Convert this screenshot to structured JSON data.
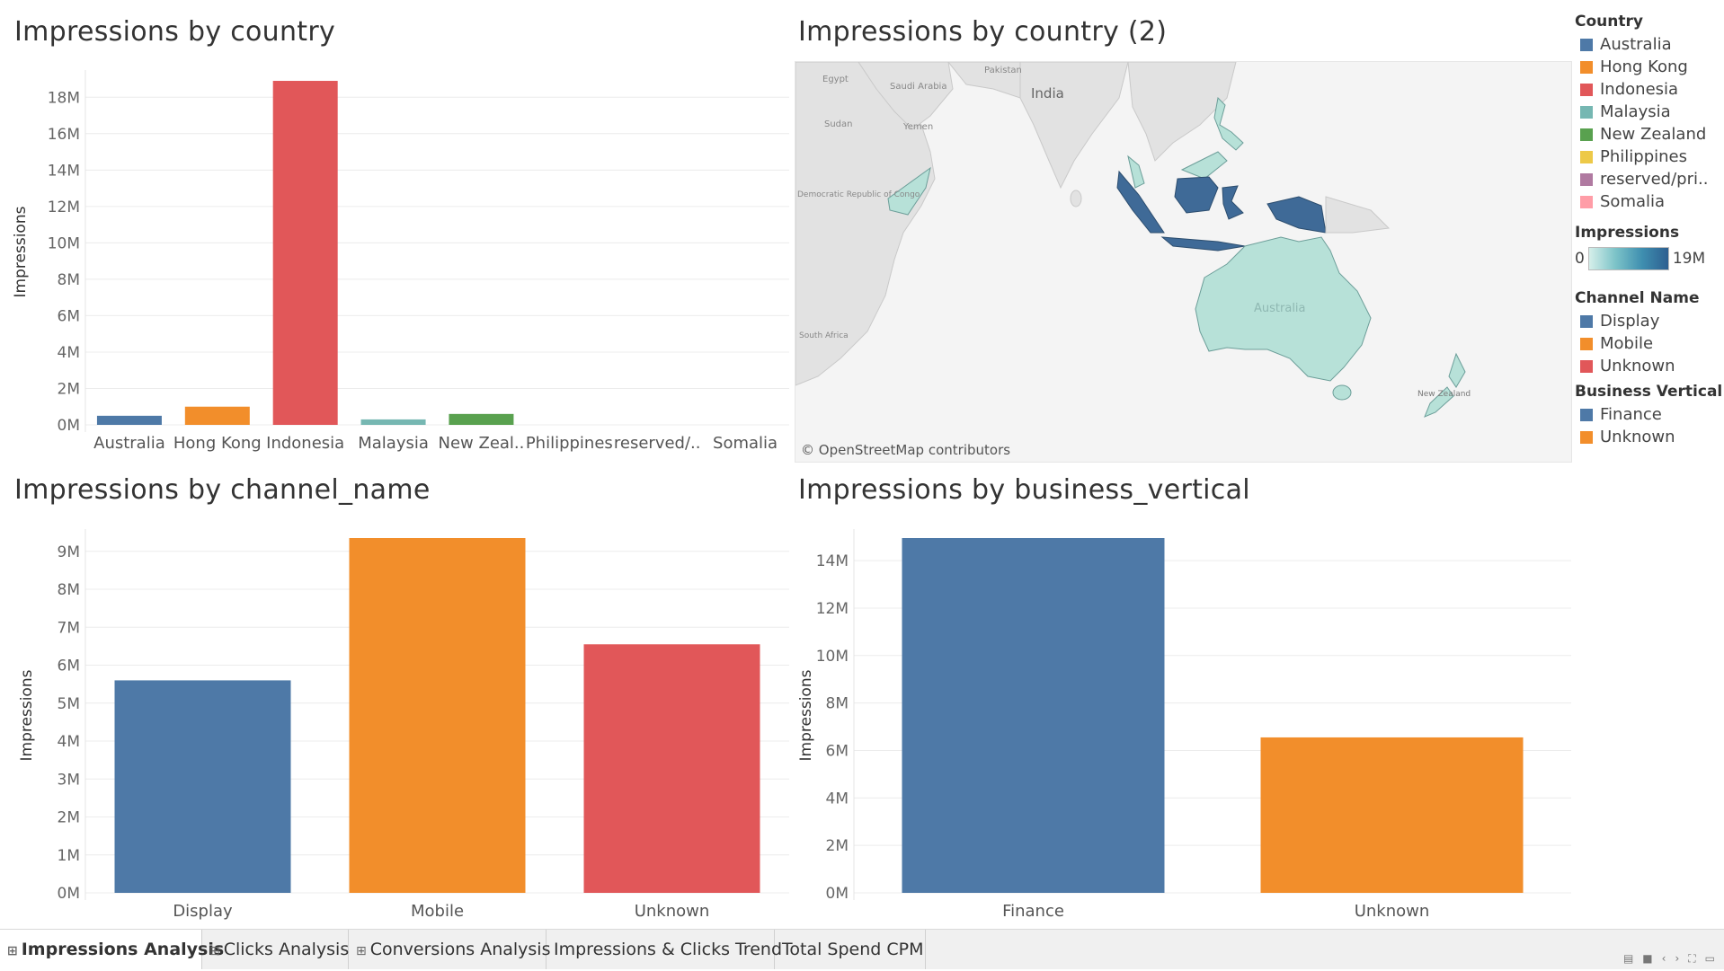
{
  "colors": {
    "blue": "#4e79a7",
    "orange": "#f28e2b",
    "red": "#e15759",
    "teal": "#76b7b2",
    "green": "#59a14f",
    "yellow": "#edc948",
    "purple": "#b07aa1",
    "pink": "#ff9da7",
    "map_low": "#b7e1d8",
    "map_high": "#3f6a97",
    "map_land": "#e2e2e2",
    "map_water": "#f4f4f4"
  },
  "titles": {
    "country_chart": "Impressions by country",
    "map": "Impressions by country (2)",
    "channel_chart": "Impressions by channel_name",
    "vertical_chart": "Impressions by business_vertical"
  },
  "map": {
    "labels": [
      "Egypt",
      "Saudi Arabia",
      "Pakistan",
      "India",
      "Sudan",
      "Yemen",
      "Democratic Republic of Congo",
      "South Africa",
      "Australia",
      "New Zealand"
    ],
    "attribution": "© OpenStreetMap contributors"
  },
  "legend": {
    "country": {
      "title": "Country",
      "items": [
        {
          "label": "Australia",
          "color": "#4e79a7"
        },
        {
          "label": "Hong Kong",
          "color": "#f28e2b"
        },
        {
          "label": "Indonesia",
          "color": "#e15759"
        },
        {
          "label": "Malaysia",
          "color": "#76b7b2"
        },
        {
          "label": "New Zealand",
          "color": "#59a14f"
        },
        {
          "label": "Philippines",
          "color": "#edc948"
        },
        {
          "label": "reserved/pri..",
          "color": "#b07aa1"
        },
        {
          "label": "Somalia",
          "color": "#ff9da7"
        }
      ]
    },
    "impressions": {
      "title": "Impressions",
      "min_label": "0",
      "max_label": "19M"
    },
    "channel": {
      "title": "Channel Name",
      "items": [
        {
          "label": "Display",
          "color": "#4e79a7"
        },
        {
          "label": "Mobile",
          "color": "#f28e2b"
        },
        {
          "label": "Unknown",
          "color": "#e15759"
        }
      ]
    },
    "vertical": {
      "title": "Business Vertical",
      "items": [
        {
          "label": "Finance",
          "color": "#4e79a7"
        },
        {
          "label": "Unknown",
          "color": "#f28e2b"
        }
      ]
    }
  },
  "tabs": [
    {
      "label": "Impressions Analysis",
      "active": true,
      "icon": "dashboard-icon"
    },
    {
      "label": "Clicks Analysis",
      "active": false,
      "icon": "dashboard-icon"
    },
    {
      "label": "Conversions Analysis",
      "active": false,
      "icon": "dashboard-icon"
    },
    {
      "label": "Impressions & Clicks Trend",
      "active": false
    },
    {
      "label": "Total Spend CPM",
      "active": false
    }
  ],
  "chart_data": [
    {
      "id": "country",
      "type": "bar",
      "title": "Impressions by country",
      "xlabel": "",
      "ylabel": "Impressions",
      "categories": [
        "Australia",
        "Hong Kong",
        "Indonesia",
        "Malaysia",
        "New Zeal..",
        "Philippines",
        "reserved/..",
        "Somalia"
      ],
      "values": [
        0.5,
        1.0,
        18.9,
        0.3,
        0.6,
        0,
        0,
        0
      ],
      "colors": [
        "#4e79a7",
        "#f28e2b",
        "#e15759",
        "#76b7b2",
        "#59a14f",
        "#edc948",
        "#b07aa1",
        "#ff9da7"
      ],
      "unit": "M",
      "yticks": [
        0,
        2,
        4,
        6,
        8,
        10,
        12,
        14,
        16,
        18
      ],
      "ylim": [
        0,
        19
      ],
      "grid": true
    },
    {
      "id": "channel",
      "type": "bar",
      "title": "Impressions by channel_name",
      "xlabel": "",
      "ylabel": "Impressions",
      "categories": [
        "Display",
        "Mobile",
        "Unknown"
      ],
      "values": [
        5.6,
        9.35,
        6.55
      ],
      "colors": [
        "#4e79a7",
        "#f28e2b",
        "#e15759"
      ],
      "unit": "M",
      "yticks": [
        0,
        1,
        2,
        3,
        4,
        5,
        6,
        7,
        8,
        9
      ],
      "ylim": [
        0,
        9.35
      ],
      "grid": true
    },
    {
      "id": "vertical",
      "type": "bar",
      "title": "Impressions by business_vertical",
      "xlabel": "",
      "ylabel": "Impressions",
      "categories": [
        "Finance",
        "Unknown"
      ],
      "values": [
        14.95,
        6.55
      ],
      "colors": [
        "#4e79a7",
        "#f28e2b"
      ],
      "unit": "M",
      "yticks": [
        0,
        2,
        4,
        6,
        8,
        10,
        12,
        14
      ],
      "ylim": [
        0,
        14.95
      ],
      "grid": true
    }
  ]
}
